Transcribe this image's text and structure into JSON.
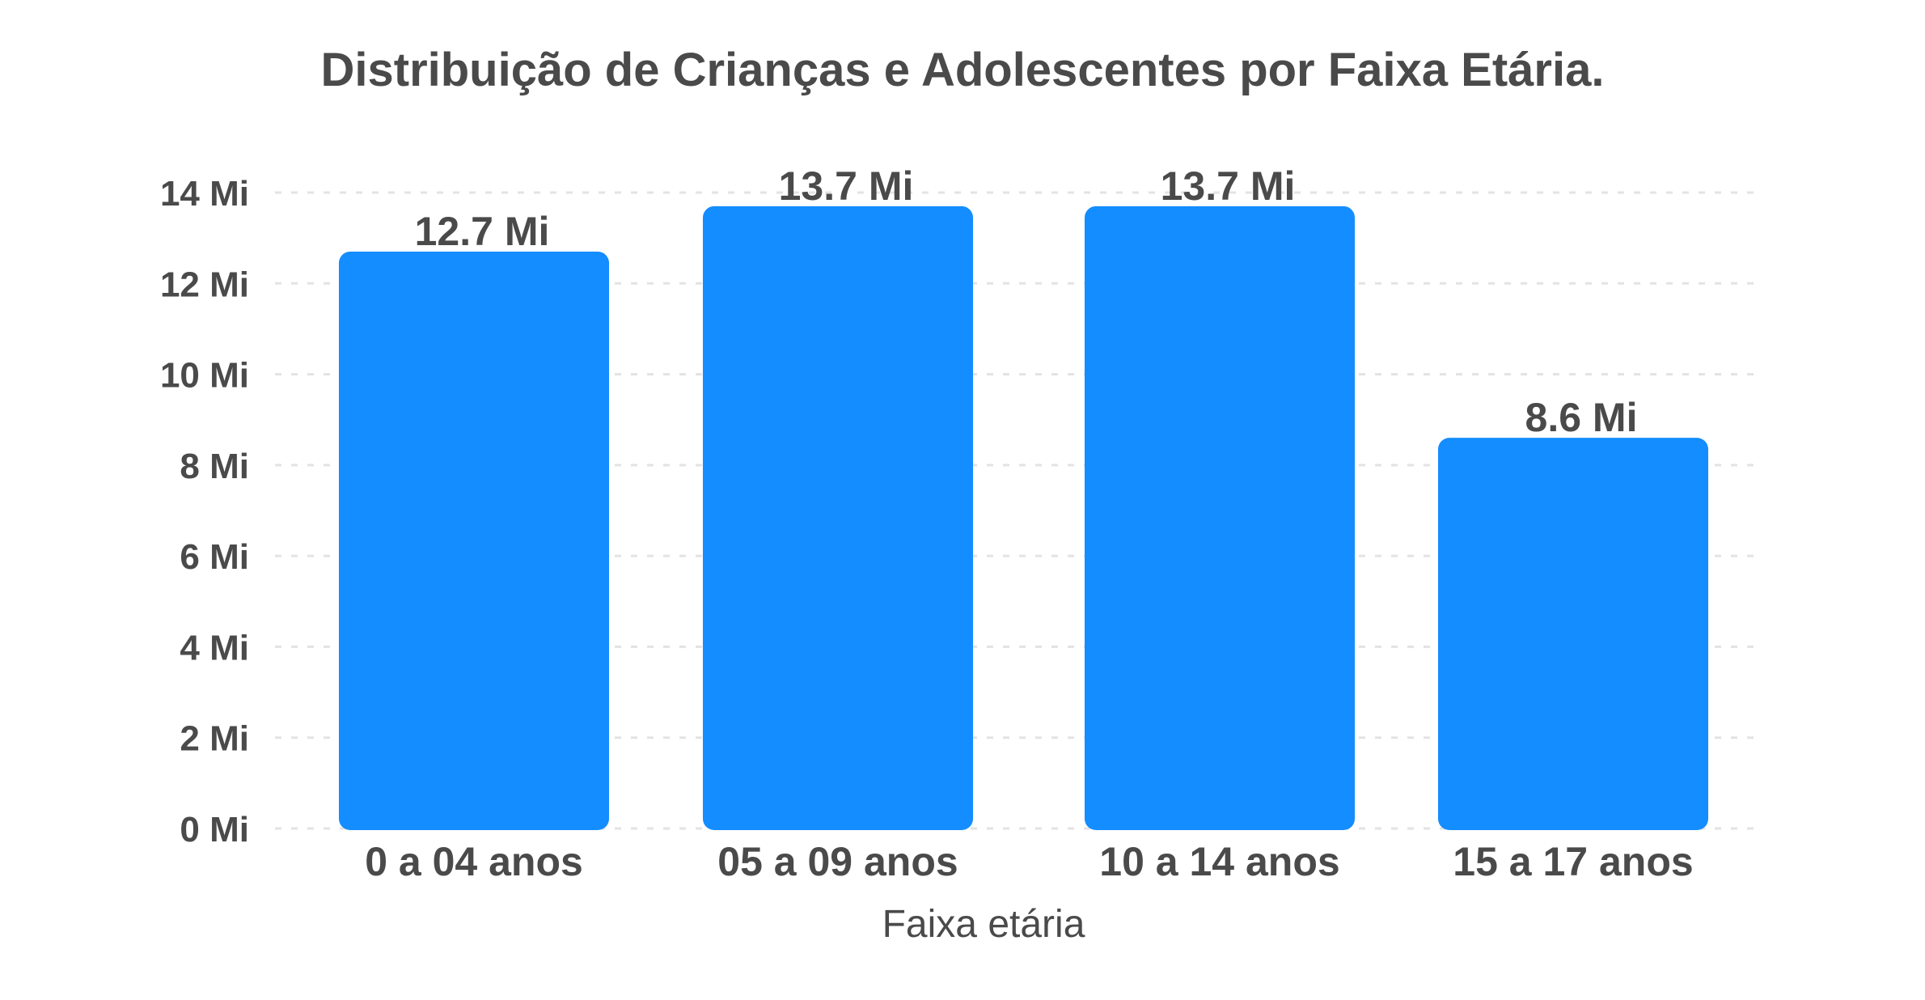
{
  "chart_data": {
    "type": "bar",
    "title": "Distribuição de Crianças e Adolescentes por Faixa Etária.",
    "xlabel": "Faixa etária",
    "ylabel": "",
    "categories": [
      "0 a 04 anos",
      "05 a 09 anos",
      "10 a 14 anos",
      "15 a 17 anos"
    ],
    "values": [
      12.7,
      13.7,
      13.7,
      8.6
    ],
    "value_labels": [
      "12.7 Mi",
      "13.7 Mi",
      "13.7 Mi",
      "8.6 Mi"
    ],
    "ylim": [
      0,
      14
    ],
    "yticks": [
      0,
      2,
      4,
      6,
      8,
      10,
      12,
      14
    ],
    "ytick_labels": [
      "0 Mi",
      "2 Mi",
      "4 Mi",
      "6 Mi",
      "8 Mi",
      "10 Mi",
      "12 Mi",
      "14 Mi"
    ],
    "grid": true,
    "legend": "none",
    "colors": {
      "bar": "#138dff",
      "text": "#4a4a4a",
      "grid": "#e3e3e3"
    }
  }
}
